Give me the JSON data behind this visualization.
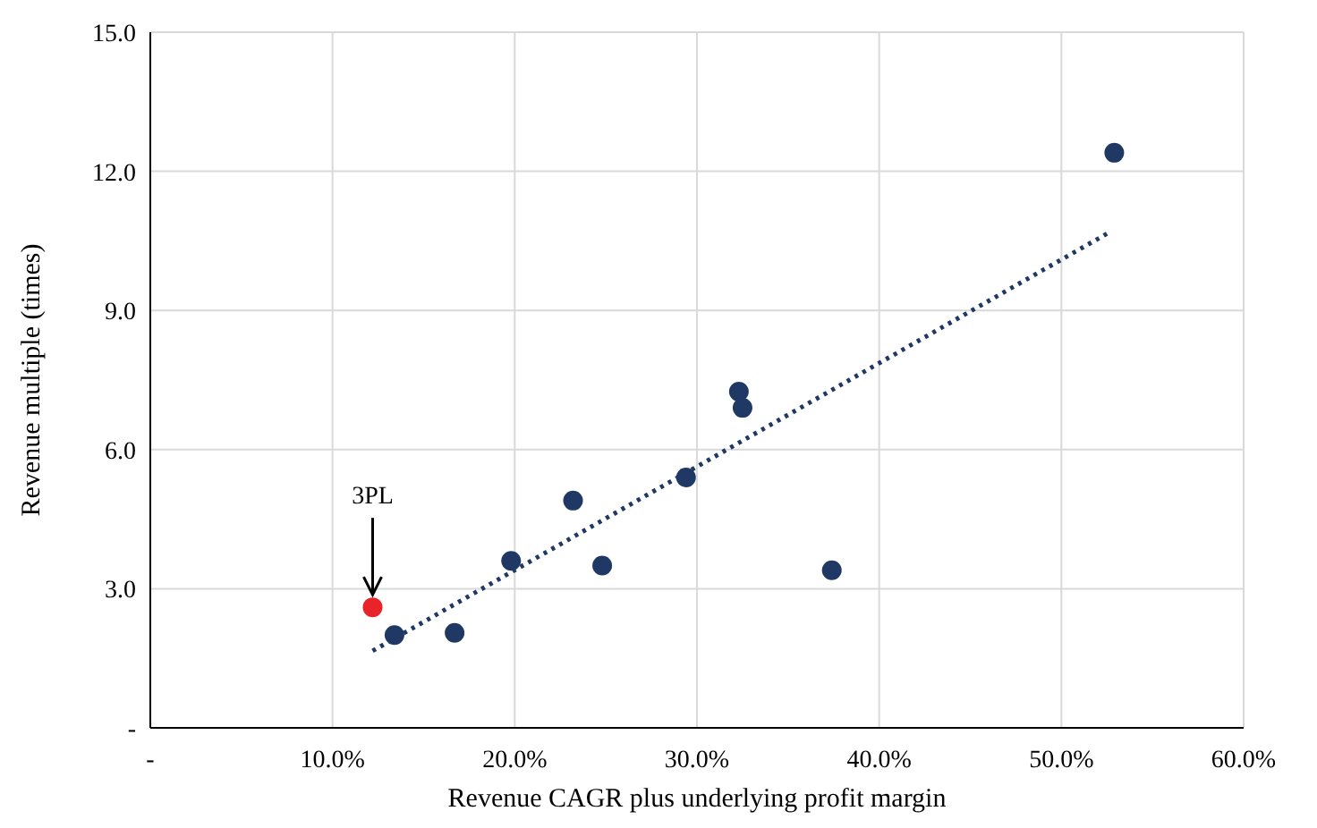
{
  "chart_data": {
    "type": "scatter",
    "xlabel": "Revenue CAGR plus underlying profit margin",
    "ylabel": "Revenue multiple (times)",
    "xlim": [
      0,
      60
    ],
    "ylim": [
      0,
      15
    ],
    "xticks": [
      {
        "value": 0,
        "label": "-"
      },
      {
        "value": 10,
        "label": "10.0%"
      },
      {
        "value": 20,
        "label": "20.0%"
      },
      {
        "value": 30,
        "label": "30.0%"
      },
      {
        "value": 40,
        "label": "40.0%"
      },
      {
        "value": 50,
        "label": "50.0%"
      },
      {
        "value": 60,
        "label": "60.0%"
      }
    ],
    "yticks": [
      {
        "value": 0,
        "label": "-"
      },
      {
        "value": 3,
        "label": "3.0"
      },
      {
        "value": 6,
        "label": "6.0"
      },
      {
        "value": 9,
        "label": "9.0"
      },
      {
        "value": 12,
        "label": "12.0"
      },
      {
        "value": 15,
        "label": "15.0"
      }
    ],
    "grid": true,
    "marker": "circle",
    "series": [
      {
        "type": "line",
        "color": "#1f3864",
        "line_style": "dotted",
        "marker": "none",
        "x": [
          12.2,
          52.7
        ],
        "values": [
          1.66,
          10.7
        ]
      },
      {
        "color": "#1f3864",
        "x": [
          13.4,
          16.7,
          19.8,
          23.2,
          24.8,
          29.4,
          32.3,
          32.5,
          37.4,
          52.9
        ],
        "values": [
          2.0,
          2.05,
          3.6,
          4.9,
          3.5,
          5.4,
          7.25,
          6.9,
          3.4,
          12.4
        ]
      },
      {
        "color": "#e8242a",
        "x": [
          12.2
        ],
        "values": [
          2.6
        ]
      }
    ],
    "annotations": [
      {
        "text": "3PL",
        "x": 12.2,
        "y": 2.6
      }
    ]
  }
}
